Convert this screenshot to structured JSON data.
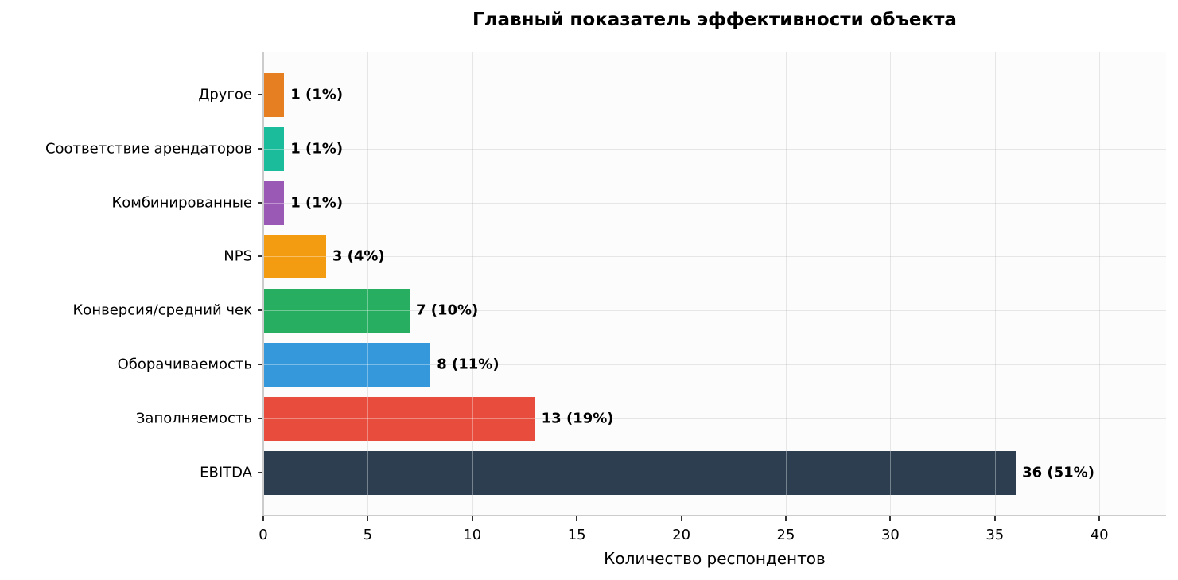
{
  "chart_data": {
    "type": "bar",
    "orientation": "horizontal",
    "title": "Главный показатель эффективности объекта",
    "xlabel": "Количество респондентов",
    "ylabel": "",
    "xlim": [
      0,
      43.2
    ],
    "xticks": [
      0,
      5,
      10,
      15,
      20,
      25,
      30,
      35,
      40
    ],
    "grid": true,
    "legend": null,
    "categories": [
      "EBITDA",
      "Заполняемость",
      "Оборачиваемость",
      "Конверсия/средний чек",
      "NPS",
      "Комбинированные",
      "Соответствие арендаторов",
      "Другое"
    ],
    "values": [
      36,
      13,
      8,
      7,
      3,
      1,
      1,
      1
    ],
    "percentages": [
      51,
      19,
      11,
      10,
      4,
      1,
      1,
      1
    ],
    "labels": [
      "36 (51%)",
      "13 (19%)",
      "8 (11%)",
      "7 (10%)",
      "3 (4%)",
      "1 (1%)",
      "1 (1%)",
      "1 (1%)"
    ],
    "colors": [
      "#2c3e50",
      "#e74c3c",
      "#3498db",
      "#27ae60",
      "#f39c12",
      "#9b59b6",
      "#1abc9c",
      "#e67e22"
    ]
  },
  "xtick_labels": [
    "0",
    "5",
    "10",
    "15",
    "20",
    "25",
    "30",
    "35",
    "40"
  ]
}
